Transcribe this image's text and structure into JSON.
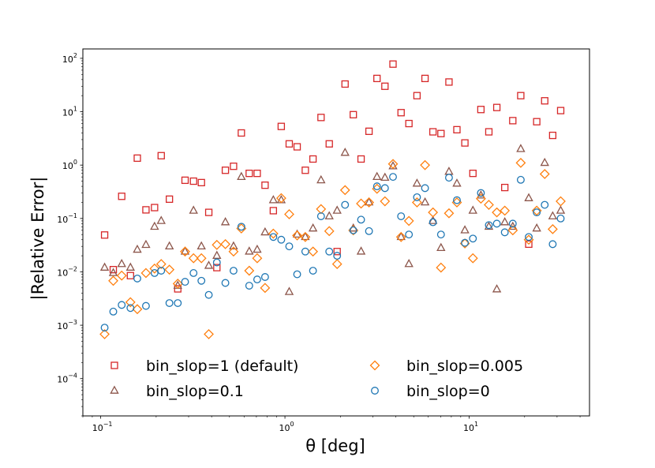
{
  "chart_data": {
    "type": "scatter",
    "xscale": "log",
    "yscale": "log",
    "xlabel": "θ [deg]",
    "ylabel": "|Relative Error|",
    "xlim": [
      0.08,
      45
    ],
    "ylim": [
      2e-05,
      150
    ],
    "xticks": [
      {
        "value": 0.1,
        "base": "10",
        "exp": "−1"
      },
      {
        "value": 1,
        "base": "10",
        "exp": "0"
      },
      {
        "value": 10,
        "base": "10",
        "exp": "1"
      }
    ],
    "yticks": [
      {
        "value": 0.0001,
        "base": "10",
        "exp": "−4"
      },
      {
        "value": 0.001,
        "base": "10",
        "exp": "−3"
      },
      {
        "value": 0.01,
        "base": "10",
        "exp": "−2"
      },
      {
        "value": 0.1,
        "base": "10",
        "exp": "−1"
      },
      {
        "value": 1,
        "base": "10",
        "exp": "0"
      },
      {
        "value": 10,
        "base": "10",
        "exp": "1"
      },
      {
        "value": 100,
        "base": "10",
        "exp": "2"
      }
    ],
    "legend_position": "lower-center",
    "x": [
      0.105,
      0.117,
      0.13,
      0.145,
      0.158,
      0.176,
      0.196,
      0.213,
      0.236,
      0.262,
      0.287,
      0.319,
      0.352,
      0.386,
      0.427,
      0.475,
      0.526,
      0.58,
      0.64,
      0.707,
      0.78,
      0.865,
      0.955,
      1.055,
      1.165,
      1.29,
      1.42,
      1.57,
      1.74,
      1.92,
      2.12,
      2.35,
      2.59,
      2.86,
      3.16,
      3.49,
      3.86,
      4.27,
      4.71,
      5.21,
      5.76,
      6.36,
      7.03,
      7.77,
      8.58,
      9.48,
      10.48,
      11.58,
      12.79,
      14.13,
      15.61,
      17.25,
      19.06,
      21.06,
      23.27,
      25.71,
      28.41,
      31.39
    ],
    "series": [
      {
        "name": "bin_slop=1 (default)",
        "marker": "square",
        "color": "#d62728",
        "y": [
          0.049,
          0.011,
          0.26,
          0.0085,
          1.35,
          0.145,
          0.16,
          1.5,
          0.23,
          0.0048,
          0.52,
          0.5,
          0.47,
          0.13,
          0.012,
          0.8,
          0.95,
          4.0,
          0.7,
          0.7,
          0.42,
          0.14,
          5.3,
          2.5,
          2.2,
          0.8,
          1.3,
          7.8,
          2.5,
          0.024,
          33,
          8.8,
          1.3,
          4.3,
          42,
          30,
          78,
          9.6,
          6.0,
          20,
          42,
          4.2,
          3.9,
          36,
          4.6,
          2.6,
          0.7,
          11,
          4.2,
          12,
          0.38,
          6.8,
          20,
          0.033,
          6.5,
          16,
          3.6,
          10.5
        ]
      },
      {
        "name": "bin_slop=0.1",
        "marker": "triangle",
        "color": "#8c564b",
        "y": [
          0.012,
          0.0095,
          0.014,
          0.012,
          0.026,
          0.032,
          0.07,
          0.09,
          0.03,
          0.0055,
          0.024,
          0.14,
          0.03,
          0.013,
          0.02,
          0.085,
          0.03,
          0.6,
          0.024,
          0.026,
          0.055,
          0.22,
          0.22,
          0.0042,
          0.05,
          0.045,
          0.065,
          0.52,
          0.11,
          0.14,
          1.7,
          0.065,
          0.024,
          0.2,
          0.6,
          0.58,
          0.95,
          0.045,
          0.014,
          0.45,
          0.2,
          0.09,
          0.028,
          0.75,
          0.45,
          0.06,
          0.14,
          0.27,
          0.07,
          0.0047,
          0.085,
          0.07,
          2.0,
          0.24,
          0.065,
          1.1,
          0.11,
          0.14
        ]
      },
      {
        "name": "bin_slop=0.005",
        "marker": "diamond",
        "color": "#ff7f0e",
        "y": [
          0.00068,
          0.0068,
          0.0085,
          0.0027,
          0.002,
          0.0095,
          0.0115,
          0.014,
          0.011,
          0.006,
          0.024,
          0.018,
          0.018,
          0.00068,
          0.032,
          0.033,
          0.024,
          0.065,
          0.0105,
          0.018,
          0.005,
          0.052,
          0.24,
          0.12,
          0.048,
          0.045,
          0.024,
          0.15,
          0.058,
          0.014,
          0.34,
          0.06,
          0.19,
          0.2,
          0.36,
          0.21,
          1.05,
          0.045,
          0.09,
          0.2,
          1.0,
          0.13,
          0.012,
          0.125,
          0.2,
          0.034,
          0.018,
          0.235,
          0.18,
          0.13,
          0.14,
          0.06,
          1.1,
          0.04,
          0.14,
          0.68,
          0.063,
          0.21
        ]
      },
      {
        "name": "bin_slop=0",
        "marker": "circle",
        "color": "#1f77b4",
        "y": [
          0.0009,
          0.0018,
          0.0024,
          0.0021,
          0.0075,
          0.0023,
          0.0095,
          0.0105,
          0.0026,
          0.0026,
          0.0065,
          0.0095,
          0.0068,
          0.0037,
          0.015,
          0.0062,
          0.0105,
          0.07,
          0.0055,
          0.0072,
          0.008,
          0.045,
          0.04,
          0.03,
          0.009,
          0.024,
          0.0105,
          0.11,
          0.024,
          0.02,
          0.18,
          0.06,
          0.095,
          0.058,
          0.4,
          0.37,
          0.6,
          0.11,
          0.05,
          0.25,
          0.37,
          0.085,
          0.05,
          0.58,
          0.22,
          0.035,
          0.042,
          0.3,
          0.075,
          0.08,
          0.055,
          0.08,
          0.53,
          0.045,
          0.13,
          0.18,
          0.033,
          0.1
        ]
      }
    ]
  }
}
